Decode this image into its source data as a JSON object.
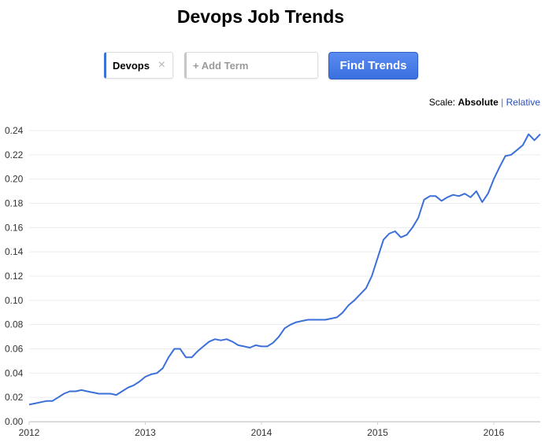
{
  "header": {
    "title": "Devops Job Trends"
  },
  "search": {
    "term": "Devops",
    "close_glyph": "×",
    "add_placeholder": "+ Add Term",
    "find_label": "Find Trends"
  },
  "scale": {
    "prefix": "Scale:",
    "absolute": "Absolute",
    "separator": "|",
    "relative": "Relative"
  },
  "colors": {
    "line": "#3b6fd9",
    "accent": "#3b73d6",
    "grid": "#ececec"
  },
  "chart_data": {
    "type": "line",
    "title": "Devops Job Trends",
    "xlabel": "",
    "ylabel": "",
    "xlim": [
      2012,
      2016.4
    ],
    "ylim": [
      0,
      0.24
    ],
    "grid": true,
    "x_tick_labels": [
      "2012",
      "2013",
      "2014",
      "2015",
      "2016"
    ],
    "x_ticks": [
      2012,
      2013,
      2014,
      2015,
      2016
    ],
    "y_tick_labels": [
      "0.00",
      "0.02",
      "0.04",
      "0.06",
      "0.08",
      "0.10",
      "0.12",
      "0.14",
      "0.16",
      "0.18",
      "0.20",
      "0.22",
      "0.24"
    ],
    "y_ticks": [
      0,
      0.02,
      0.04,
      0.06,
      0.08,
      0.1,
      0.12,
      0.14,
      0.16,
      0.18,
      0.2,
      0.22,
      0.24
    ],
    "series": [
      {
        "name": "Devops",
        "x": [
          2012.0,
          2012.05,
          2012.1,
          2012.15,
          2012.2,
          2012.25,
          2012.3,
          2012.35,
          2012.4,
          2012.45,
          2012.5,
          2012.55,
          2012.6,
          2012.65,
          2012.7,
          2012.75,
          2012.8,
          2012.85,
          2012.9,
          2012.95,
          2013.0,
          2013.05,
          2013.1,
          2013.15,
          2013.2,
          2013.25,
          2013.3,
          2013.35,
          2013.4,
          2013.45,
          2013.5,
          2013.55,
          2013.6,
          2013.65,
          2013.7,
          2013.75,
          2013.8,
          2013.85,
          2013.9,
          2013.95,
          2014.0,
          2014.05,
          2014.1,
          2014.15,
          2014.2,
          2014.25,
          2014.3,
          2014.35,
          2014.4,
          2014.45,
          2014.5,
          2014.55,
          2014.6,
          2014.65,
          2014.7,
          2014.75,
          2014.8,
          2014.85,
          2014.9,
          2014.95,
          2015.0,
          2015.05,
          2015.1,
          2015.15,
          2015.2,
          2015.25,
          2015.3,
          2015.35,
          2015.4,
          2015.45,
          2015.5,
          2015.55,
          2015.6,
          2015.65,
          2015.7,
          2015.75,
          2015.8,
          2015.85,
          2015.9,
          2015.95,
          2016.0,
          2016.05,
          2016.1,
          2016.15,
          2016.2,
          2016.25,
          2016.3,
          2016.35,
          2016.4
        ],
        "values": [
          0.014,
          0.015,
          0.016,
          0.017,
          0.017,
          0.02,
          0.023,
          0.025,
          0.025,
          0.026,
          0.025,
          0.024,
          0.023,
          0.023,
          0.023,
          0.022,
          0.025,
          0.028,
          0.03,
          0.033,
          0.037,
          0.039,
          0.04,
          0.044,
          0.053,
          0.06,
          0.06,
          0.053,
          0.053,
          0.058,
          0.062,
          0.066,
          0.068,
          0.067,
          0.068,
          0.066,
          0.063,
          0.062,
          0.061,
          0.063,
          0.062,
          0.062,
          0.065,
          0.07,
          0.077,
          0.08,
          0.082,
          0.083,
          0.084,
          0.084,
          0.084,
          0.084,
          0.085,
          0.086,
          0.09,
          0.096,
          0.1,
          0.105,
          0.11,
          0.12,
          0.135,
          0.15,
          0.155,
          0.157,
          0.152,
          0.154,
          0.16,
          0.168,
          0.183,
          0.186,
          0.186,
          0.182,
          0.185,
          0.187,
          0.186,
          0.188,
          0.185,
          0.19,
          0.181,
          0.188,
          0.2,
          0.21,
          0.219,
          0.22,
          0.224,
          0.228,
          0.237,
          0.232,
          0.237
        ]
      }
    ]
  }
}
